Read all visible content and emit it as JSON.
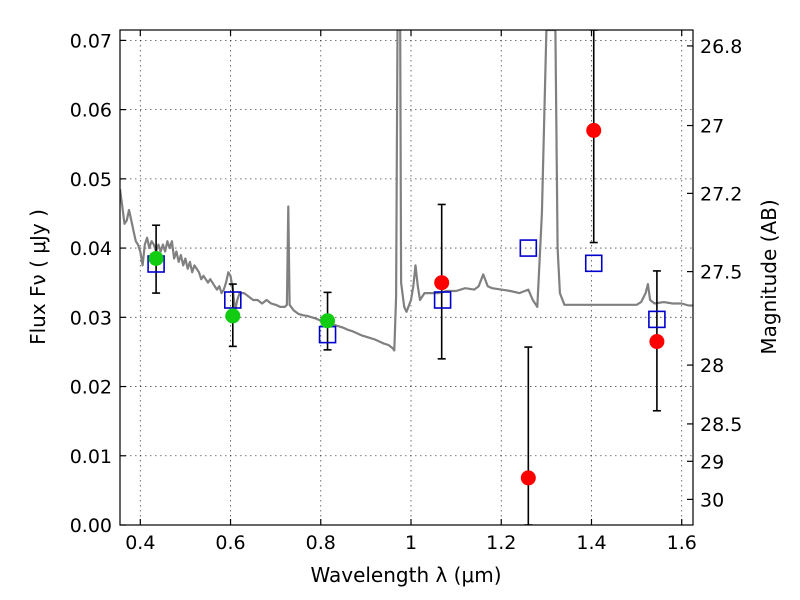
{
  "chart_data": {
    "type": "scatter",
    "title": "",
    "xlabel": "Wavelength  λ (μm)",
    "ylabel": "Flux  Fν  ( μJy )",
    "y2label": "Magnitude (AB)",
    "xlim": [
      0.355,
      1.625
    ],
    "ylim": [
      0.0,
      0.0715
    ],
    "grid": true,
    "legend": "none",
    "xticks": [
      0.4,
      0.6,
      0.8,
      1.0,
      1.2,
      1.4,
      1.6
    ],
    "xtick_labels": [
      "0.4",
      "0.6",
      "0.8",
      "1",
      "1.2",
      "1.4",
      "1.6"
    ],
    "yticks": [
      0.0,
      0.01,
      0.02,
      0.03,
      0.04,
      0.05,
      0.06,
      0.07
    ],
    "ytick_labels": [
      "0.00",
      "0.01",
      "0.02",
      "0.03",
      "0.04",
      "0.05",
      "0.06",
      "0.07"
    ],
    "y2ticks": [
      {
        "flux": 0.0692,
        "label": "26.8"
      },
      {
        "flux": 0.0577,
        "label": "27"
      },
      {
        "flux": 0.0479,
        "label": "27.2"
      },
      {
        "flux": 0.0366,
        "label": "27.5"
      },
      {
        "flux": 0.0231,
        "label": "28"
      },
      {
        "flux": 0.0146,
        "label": "28.5"
      },
      {
        "flux": 0.0092,
        "label": "29"
      },
      {
        "flux": 0.0037,
        "label": "30"
      }
    ],
    "colors": {
      "model": "#808080",
      "model_points": "#0000cc",
      "detections": "#11cc11",
      "measurements": "#ff0000",
      "errorbars": "#000000"
    },
    "model_spectrum": [
      [
        0.355,
        0.0485
      ],
      [
        0.36,
        0.046
      ],
      [
        0.365,
        0.0435
      ],
      [
        0.37,
        0.044
      ],
      [
        0.375,
        0.0455
      ],
      [
        0.38,
        0.044
      ],
      [
        0.385,
        0.0425
      ],
      [
        0.39,
        0.041
      ],
      [
        0.395,
        0.0405
      ],
      [
        0.4,
        0.0395
      ],
      [
        0.405,
        0.0375
      ],
      [
        0.41,
        0.0405
      ],
      [
        0.415,
        0.0415
      ],
      [
        0.42,
        0.04
      ],
      [
        0.425,
        0.041
      ],
      [
        0.43,
        0.0405
      ],
      [
        0.435,
        0.0395
      ],
      [
        0.44,
        0.0405
      ],
      [
        0.445,
        0.0395
      ],
      [
        0.45,
        0.0405
      ],
      [
        0.455,
        0.0395
      ],
      [
        0.46,
        0.041
      ],
      [
        0.465,
        0.04
      ],
      [
        0.47,
        0.041
      ],
      [
        0.475,
        0.0385
      ],
      [
        0.48,
        0.0395
      ],
      [
        0.485,
        0.038
      ],
      [
        0.49,
        0.039
      ],
      [
        0.495,
        0.0375
      ],
      [
        0.5,
        0.0385
      ],
      [
        0.505,
        0.037
      ],
      [
        0.51,
        0.038
      ],
      [
        0.515,
        0.0365
      ],
      [
        0.52,
        0.0375
      ],
      [
        0.525,
        0.037
      ],
      [
        0.53,
        0.0365
      ],
      [
        0.535,
        0.0355
      ],
      [
        0.54,
        0.036
      ],
      [
        0.545,
        0.0355
      ],
      [
        0.55,
        0.035
      ],
      [
        0.555,
        0.0355
      ],
      [
        0.56,
        0.035
      ],
      [
        0.565,
        0.0345
      ],
      [
        0.57,
        0.034
      ],
      [
        0.575,
        0.0345
      ],
      [
        0.58,
        0.0335
      ],
      [
        0.585,
        0.034
      ],
      [
        0.59,
        0.035
      ],
      [
        0.595,
        0.0365
      ],
      [
        0.6,
        0.036
      ],
      [
        0.605,
        0.034
      ],
      [
        0.61,
        0.031
      ],
      [
        0.615,
        0.0325
      ],
      [
        0.62,
        0.0335
      ],
      [
        0.63,
        0.0335
      ],
      [
        0.64,
        0.033
      ],
      [
        0.65,
        0.0325
      ],
      [
        0.66,
        0.0325
      ],
      [
        0.67,
        0.032
      ],
      [
        0.68,
        0.0325
      ],
      [
        0.69,
        0.032
      ],
      [
        0.7,
        0.0318
      ],
      [
        0.71,
        0.0315
      ],
      [
        0.72,
        0.0315
      ],
      [
        0.725,
        0.0318
      ],
      [
        0.728,
        0.046
      ],
      [
        0.731,
        0.0318
      ],
      [
        0.74,
        0.031
      ],
      [
        0.75,
        0.0305
      ],
      [
        0.76,
        0.0303
      ],
      [
        0.77,
        0.0302
      ],
      [
        0.78,
        0.03
      ],
      [
        0.79,
        0.0298
      ],
      [
        0.8,
        0.0295
      ],
      [
        0.81,
        0.0293
      ],
      [
        0.82,
        0.0291
      ],
      [
        0.83,
        0.0289
      ],
      [
        0.84,
        0.0287
      ],
      [
        0.85,
        0.0285
      ],
      [
        0.86,
        0.0282
      ],
      [
        0.87,
        0.028
      ],
      [
        0.88,
        0.0277
      ],
      [
        0.89,
        0.0274
      ],
      [
        0.9,
        0.0272
      ],
      [
        0.91,
        0.027
      ],
      [
        0.92,
        0.0268
      ],
      [
        0.93,
        0.0265
      ],
      [
        0.94,
        0.0262
      ],
      [
        0.95,
        0.026
      ],
      [
        0.96,
        0.0255
      ],
      [
        0.963,
        0.0252
      ],
      [
        0.967,
        0.033
      ],
      [
        0.97,
        0.0715
      ],
      [
        0.976,
        0.0715
      ],
      [
        0.978,
        0.035
      ],
      [
        0.985,
        0.0315
      ],
      [
        0.99,
        0.0308
      ],
      [
        1.0,
        0.0325
      ],
      [
        1.005,
        0.0345
      ],
      [
        1.01,
        0.0375
      ],
      [
        1.015,
        0.0345
      ],
      [
        1.02,
        0.0325
      ],
      [
        1.03,
        0.0335
      ],
      [
        1.04,
        0.0335
      ],
      [
        1.06,
        0.0335
      ],
      [
        1.08,
        0.0338
      ],
      [
        1.1,
        0.0338
      ],
      [
        1.12,
        0.0342
      ],
      [
        1.14,
        0.034
      ],
      [
        1.15,
        0.0345
      ],
      [
        1.16,
        0.0362
      ],
      [
        1.17,
        0.0345
      ],
      [
        1.18,
        0.0342
      ],
      [
        1.2,
        0.034
      ],
      [
        1.22,
        0.0338
      ],
      [
        1.24,
        0.0335
      ],
      [
        1.26,
        0.034
      ],
      [
        1.27,
        0.0325
      ],
      [
        1.28,
        0.0315
      ],
      [
        1.29,
        0.045
      ],
      [
        1.3,
        0.0715
      ],
      [
        1.32,
        0.0715
      ],
      [
        1.325,
        0.04
      ],
      [
        1.33,
        0.0335
      ],
      [
        1.34,
        0.0318
      ],
      [
        1.36,
        0.0318
      ],
      [
        1.38,
        0.0318
      ],
      [
        1.4,
        0.0318
      ],
      [
        1.42,
        0.0318
      ],
      [
        1.44,
        0.0318
      ],
      [
        1.46,
        0.0318
      ],
      [
        1.48,
        0.0318
      ],
      [
        1.5,
        0.0318
      ],
      [
        1.51,
        0.0322
      ],
      [
        1.52,
        0.0335
      ],
      [
        1.525,
        0.0348
      ],
      [
        1.53,
        0.0325
      ],
      [
        1.54,
        0.032
      ],
      [
        1.56,
        0.0322
      ],
      [
        1.58,
        0.032
      ],
      [
        1.6,
        0.032
      ],
      [
        1.615,
        0.0317
      ],
      [
        1.625,
        0.0317
      ]
    ],
    "model_points": [
      {
        "x": 0.435,
        "y": 0.0377
      },
      {
        "x": 0.605,
        "y": 0.0325
      },
      {
        "x": 0.815,
        "y": 0.0275
      },
      {
        "x": 1.07,
        "y": 0.0325
      },
      {
        "x": 1.26,
        "y": 0.04
      },
      {
        "x": 1.405,
        "y": 0.0378
      },
      {
        "x": 1.545,
        "y": 0.0297
      }
    ],
    "detections": [
      {
        "x": 0.435,
        "y": 0.0385,
        "yerr_low": 0.0335,
        "yerr_high": 0.0433
      },
      {
        "x": 0.605,
        "y": 0.0302,
        "yerr_low": 0.0258,
        "yerr_high": 0.0348
      },
      {
        "x": 0.815,
        "y": 0.0295,
        "yerr_low": 0.0253,
        "yerr_high": 0.0336
      }
    ],
    "measurements": [
      {
        "x": 1.068,
        "y": 0.035,
        "yerr_low": 0.024,
        "yerr_high": 0.0463
      },
      {
        "x": 1.26,
        "y": 0.0068,
        "yerr_low": 0.0,
        "yerr_high": 0.0257
      },
      {
        "x": 1.405,
        "y": 0.057,
        "yerr_low": 0.0408,
        "yerr_high": 0.0715
      },
      {
        "x": 1.545,
        "y": 0.0265,
        "yerr_low": 0.0165,
        "yerr_high": 0.0367
      }
    ]
  }
}
